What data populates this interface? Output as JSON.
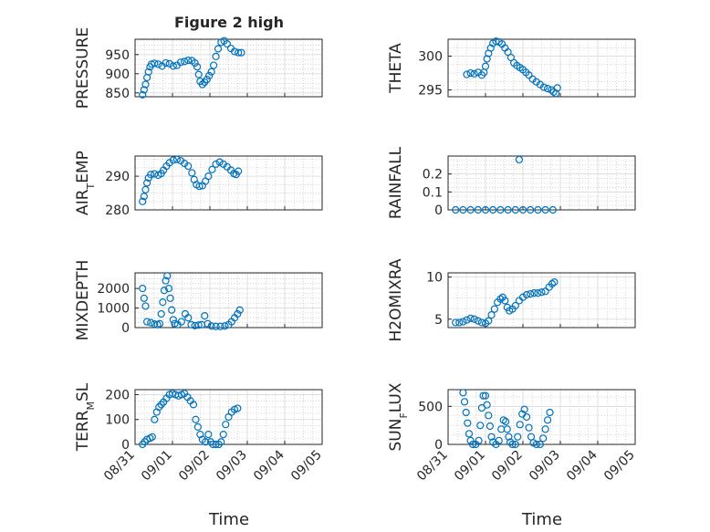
{
  "figure_title": "Figure 2 high",
  "x_common_label": "Time",
  "marker_color": "#0072BD",
  "chart_data": [
    {
      "type": "scatter",
      "ylabel": "PRESSURE",
      "ylabel_sub": null,
      "ylim": [
        840,
        990
      ],
      "yticks": [
        850,
        900,
        950
      ],
      "xlim": [
        0,
        5
      ],
      "points": [
        [
          0.2,
          845
        ],
        [
          0.24,
          858
        ],
        [
          0.28,
          872
        ],
        [
          0.32,
          890
        ],
        [
          0.36,
          905
        ],
        [
          0.4,
          918
        ],
        [
          0.44,
          925
        ],
        [
          0.52,
          927
        ],
        [
          0.62,
          925
        ],
        [
          0.72,
          920
        ],
        [
          0.82,
          928
        ],
        [
          0.92,
          926
        ],
        [
          1.02,
          920
        ],
        [
          1.12,
          922
        ],
        [
          1.22,
          930
        ],
        [
          1.32,
          932
        ],
        [
          1.42,
          935
        ],
        [
          1.52,
          934
        ],
        [
          1.6,
          928
        ],
        [
          1.66,
          918
        ],
        [
          1.7,
          898
        ],
        [
          1.74,
          880
        ],
        [
          1.8,
          872
        ],
        [
          1.86,
          878
        ],
        [
          1.92,
          885
        ],
        [
          1.98,
          895
        ],
        [
          2.04,
          905
        ],
        [
          2.1,
          922
        ],
        [
          2.16,
          945
        ],
        [
          2.22,
          965
        ],
        [
          2.3,
          982
        ],
        [
          2.38,
          986
        ],
        [
          2.46,
          978
        ],
        [
          2.56,
          966
        ],
        [
          2.66,
          958
        ],
        [
          2.76,
          955
        ],
        [
          2.84,
          955
        ]
      ]
    },
    {
      "type": "scatter",
      "ylabel": "THETA",
      "ylabel_sub": null,
      "ylim": [
        294,
        302.5
      ],
      "yticks": [
        295,
        300
      ],
      "xlim": [
        0,
        5
      ],
      "points": [
        [
          0.5,
          297.3
        ],
        [
          0.6,
          297.5
        ],
        [
          0.7,
          297.4
        ],
        [
          0.8,
          297.6
        ],
        [
          0.9,
          297.2
        ],
        [
          0.96,
          297.6
        ],
        [
          1.0,
          298.5
        ],
        [
          1.04,
          299.6
        ],
        [
          1.08,
          300.4
        ],
        [
          1.14,
          301.2
        ],
        [
          1.2,
          301.9
        ],
        [
          1.28,
          302.2
        ],
        [
          1.36,
          302.1
        ],
        [
          1.44,
          301.8
        ],
        [
          1.52,
          301.2
        ],
        [
          1.6,
          300.6
        ],
        [
          1.68,
          299.8
        ],
        [
          1.76,
          299.0
        ],
        [
          1.84,
          298.6
        ],
        [
          1.92,
          298.3
        ],
        [
          2.0,
          298.0
        ],
        [
          2.08,
          297.6
        ],
        [
          2.16,
          297.2
        ],
        [
          2.26,
          296.6
        ],
        [
          2.36,
          296.2
        ],
        [
          2.46,
          295.8
        ],
        [
          2.56,
          295.4
        ],
        [
          2.66,
          295.2
        ],
        [
          2.76,
          295.0
        ],
        [
          2.82,
          294.7
        ],
        [
          2.88,
          294.5
        ],
        [
          2.92,
          295.3
        ]
      ]
    },
    {
      "type": "scatter",
      "ylabel": "AIR",
      "ylabel_sub": "T",
      "ylabel_after": "EMP",
      "ylim": [
        280,
        296
      ],
      "yticks": [
        280,
        290
      ],
      "xlim": [
        0,
        5
      ],
      "points": [
        [
          0.2,
          282.5
        ],
        [
          0.24,
          284
        ],
        [
          0.28,
          286
        ],
        [
          0.32,
          288
        ],
        [
          0.36,
          289.5
        ],
        [
          0.42,
          290.5
        ],
        [
          0.52,
          290.7
        ],
        [
          0.62,
          290.3
        ],
        [
          0.7,
          290.8
        ],
        [
          0.76,
          291.8
        ],
        [
          0.84,
          293
        ],
        [
          0.92,
          294
        ],
        [
          1.02,
          294.8
        ],
        [
          1.12,
          295
        ],
        [
          1.22,
          294.6
        ],
        [
          1.32,
          293.8
        ],
        [
          1.42,
          293
        ],
        [
          1.52,
          291
        ],
        [
          1.58,
          289
        ],
        [
          1.64,
          287.5
        ],
        [
          1.72,
          287
        ],
        [
          1.8,
          287.2
        ],
        [
          1.88,
          288.5
        ],
        [
          1.96,
          290
        ],
        [
          2.06,
          292
        ],
        [
          2.16,
          293.6
        ],
        [
          2.26,
          294.2
        ],
        [
          2.36,
          293.6
        ],
        [
          2.46,
          292.8
        ],
        [
          2.56,
          291.8
        ],
        [
          2.64,
          290.8
        ],
        [
          2.7,
          290.5
        ],
        [
          2.76,
          291.5
        ]
      ]
    },
    {
      "type": "scatter",
      "ylabel": "RAINFALL",
      "ylabel_sub": null,
      "ylim": [
        0,
        0.3
      ],
      "yticks": [
        0,
        0.1,
        0.2
      ],
      "xlim": [
        0,
        5
      ],
      "points": [
        [
          0.2,
          0
        ],
        [
          0.4,
          0
        ],
        [
          0.6,
          0
        ],
        [
          0.8,
          0
        ],
        [
          1.0,
          0
        ],
        [
          1.2,
          0
        ],
        [
          1.4,
          0
        ],
        [
          1.6,
          0
        ],
        [
          1.8,
          0
        ],
        [
          2.0,
          0
        ],
        [
          2.2,
          0
        ],
        [
          2.4,
          0
        ],
        [
          2.6,
          0
        ],
        [
          2.8,
          0
        ],
        [
          1.9,
          0.28
        ]
      ]
    },
    {
      "type": "scatter",
      "ylabel": "MIXDEPTH",
      "ylabel_sub": null,
      "ylim": [
        0,
        2800
      ],
      "yticks": [
        0,
        1000,
        2000
      ],
      "xlim": [
        0,
        5
      ],
      "points": [
        [
          0.2,
          2000
        ],
        [
          0.24,
          1500
        ],
        [
          0.28,
          1100
        ],
        [
          0.32,
          300
        ],
        [
          0.42,
          250
        ],
        [
          0.52,
          180
        ],
        [
          0.6,
          150
        ],
        [
          0.66,
          200
        ],
        [
          0.7,
          700
        ],
        [
          0.74,
          1300
        ],
        [
          0.78,
          1900
        ],
        [
          0.82,
          2400
        ],
        [
          0.86,
          2650
        ],
        [
          0.9,
          2000
        ],
        [
          0.94,
          1500
        ],
        [
          0.98,
          900
        ],
        [
          1.02,
          400
        ],
        [
          1.06,
          200
        ],
        [
          1.14,
          150
        ],
        [
          1.24,
          300
        ],
        [
          1.34,
          700
        ],
        [
          1.42,
          500
        ],
        [
          1.5,
          150
        ],
        [
          1.6,
          100
        ],
        [
          1.7,
          130
        ],
        [
          1.78,
          150
        ],
        [
          1.86,
          600
        ],
        [
          1.94,
          200
        ],
        [
          2.04,
          80
        ],
        [
          2.16,
          60
        ],
        [
          2.28,
          60
        ],
        [
          2.4,
          80
        ],
        [
          2.5,
          150
        ],
        [
          2.58,
          300
        ],
        [
          2.66,
          500
        ],
        [
          2.74,
          700
        ],
        [
          2.8,
          900
        ]
      ]
    },
    {
      "type": "scatter",
      "ylabel": "H2OMIXRA",
      "ylabel_sub": null,
      "ylim": [
        4,
        10.5
      ],
      "yticks": [
        5,
        10
      ],
      "xlim": [
        0,
        5
      ],
      "points": [
        [
          0.2,
          4.6
        ],
        [
          0.3,
          4.6
        ],
        [
          0.4,
          4.7
        ],
        [
          0.5,
          4.9
        ],
        [
          0.6,
          5.1
        ],
        [
          0.7,
          5.0
        ],
        [
          0.8,
          4.8
        ],
        [
          0.9,
          4.6
        ],
        [
          1.0,
          4.5
        ],
        [
          1.08,
          4.8
        ],
        [
          1.16,
          5.5
        ],
        [
          1.24,
          6.2
        ],
        [
          1.32,
          7.0
        ],
        [
          1.4,
          7.4
        ],
        [
          1.46,
          7.6
        ],
        [
          1.52,
          7.2
        ],
        [
          1.58,
          6.4
        ],
        [
          1.64,
          6.0
        ],
        [
          1.72,
          6.2
        ],
        [
          1.8,
          6.6
        ],
        [
          1.9,
          7.2
        ],
        [
          2.0,
          7.6
        ],
        [
          2.1,
          7.9
        ],
        [
          2.2,
          8.0
        ],
        [
          2.3,
          8.1
        ],
        [
          2.4,
          8.1
        ],
        [
          2.5,
          8.2
        ],
        [
          2.6,
          8.3
        ],
        [
          2.7,
          8.8
        ],
        [
          2.78,
          9.2
        ],
        [
          2.84,
          9.4
        ]
      ]
    },
    {
      "type": "scatter",
      "ylabel": "TERR",
      "ylabel_sub": "M",
      "ylabel_after": "SL",
      "ylim": [
        0,
        220
      ],
      "yticks": [
        0,
        100,
        200
      ],
      "xlim": [
        0,
        5
      ],
      "points": [
        [
          0.2,
          0
        ],
        [
          0.26,
          10
        ],
        [
          0.32,
          20
        ],
        [
          0.4,
          25
        ],
        [
          0.46,
          30
        ],
        [
          0.52,
          100
        ],
        [
          0.58,
          130
        ],
        [
          0.64,
          150
        ],
        [
          0.7,
          160
        ],
        [
          0.76,
          170
        ],
        [
          0.84,
          185
        ],
        [
          0.92,
          200
        ],
        [
          1.0,
          205
        ],
        [
          1.08,
          200
        ],
        [
          1.16,
          195
        ],
        [
          1.24,
          200
        ],
        [
          1.32,
          205
        ],
        [
          1.4,
          190
        ],
        [
          1.48,
          175
        ],
        [
          1.56,
          160
        ],
        [
          1.62,
          100
        ],
        [
          1.68,
          70
        ],
        [
          1.74,
          40
        ],
        [
          1.8,
          20
        ],
        [
          1.88,
          10
        ],
        [
          1.96,
          40
        ],
        [
          2.02,
          10
        ],
        [
          2.08,
          0
        ],
        [
          2.16,
          0
        ],
        [
          2.24,
          0
        ],
        [
          2.3,
          10
        ],
        [
          2.36,
          40
        ],
        [
          2.42,
          80
        ],
        [
          2.5,
          110
        ],
        [
          2.58,
          130
        ],
        [
          2.66,
          140
        ],
        [
          2.74,
          145
        ]
      ]
    },
    {
      "type": "scatter",
      "ylabel": "SUN",
      "ylabel_sub": "F",
      "ylabel_after": "LUX",
      "ylim": [
        0,
        720
      ],
      "yticks": [
        0,
        500
      ],
      "xlim": [
        0,
        5
      ],
      "points": [
        [
          0.4,
          680
        ],
        [
          0.44,
          560
        ],
        [
          0.48,
          420
        ],
        [
          0.52,
          280
        ],
        [
          0.56,
          140
        ],
        [
          0.6,
          50
        ],
        [
          0.66,
          0
        ],
        [
          0.74,
          0
        ],
        [
          0.82,
          50
        ],
        [
          0.86,
          250
        ],
        [
          0.9,
          480
        ],
        [
          0.94,
          640
        ],
        [
          1.0,
          640
        ],
        [
          1.04,
          520
        ],
        [
          1.08,
          380
        ],
        [
          1.12,
          240
        ],
        [
          1.16,
          100
        ],
        [
          1.2,
          30
        ],
        [
          1.28,
          0
        ],
        [
          1.36,
          50
        ],
        [
          1.42,
          200
        ],
        [
          1.48,
          320
        ],
        [
          1.54,
          300
        ],
        [
          1.58,
          200
        ],
        [
          1.62,
          100
        ],
        [
          1.66,
          30
        ],
        [
          1.72,
          0
        ],
        [
          1.8,
          0
        ],
        [
          1.86,
          100
        ],
        [
          1.92,
          260
        ],
        [
          1.98,
          400
        ],
        [
          2.04,
          460
        ],
        [
          2.1,
          360
        ],
        [
          2.16,
          220
        ],
        [
          2.22,
          100
        ],
        [
          2.28,
          20
        ],
        [
          2.36,
          0
        ],
        [
          2.46,
          0
        ],
        [
          2.54,
          80
        ],
        [
          2.6,
          200
        ],
        [
          2.66,
          320
        ],
        [
          2.72,
          420
        ]
      ]
    }
  ],
  "x_ticks": [
    "08/31",
    "09/01",
    "09/02",
    "09/03",
    "09/04",
    "09/05"
  ]
}
